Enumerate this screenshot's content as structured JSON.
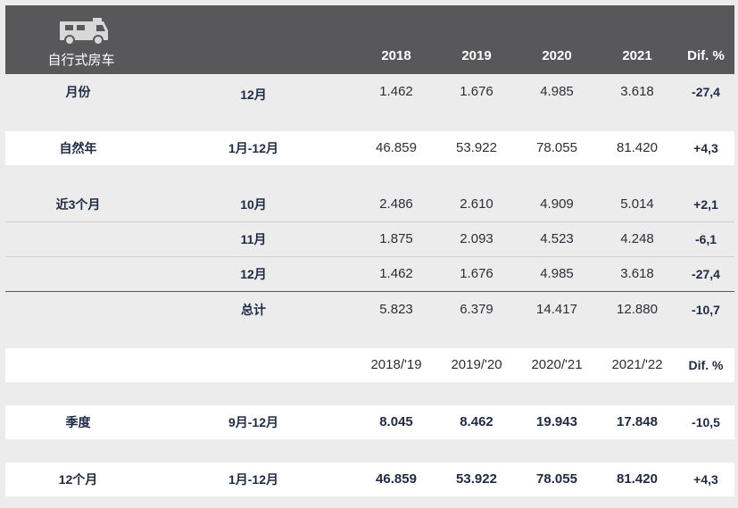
{
  "header": {
    "category": "自行式房车",
    "icon": "camper-van-icon",
    "years": [
      "2018",
      "2019",
      "2020",
      "2021"
    ],
    "diff_label": "Dif. %"
  },
  "rows": {
    "month": {
      "label": "月份",
      "period": "12月",
      "values": [
        "1.462",
        "1.676",
        "4.985",
        "3.618"
      ],
      "diff": "-27,4"
    },
    "year": {
      "label": "自然年",
      "period": "1月-12月",
      "values": [
        "46.859",
        "53.922",
        "78.055",
        "81.420"
      ],
      "diff": "+4,3"
    },
    "last3": {
      "label": "近3个月",
      "items": [
        {
          "period": "10月",
          "values": [
            "2.486",
            "2.610",
            "4.909",
            "5.014"
          ],
          "diff": "+2,1"
        },
        {
          "period": "11月",
          "values": [
            "1.875",
            "2.093",
            "4.523",
            "4.248"
          ],
          "diff": "-6,1"
        },
        {
          "period": "12月",
          "values": [
            "1.462",
            "1.676",
            "4.985",
            "3.618"
          ],
          "diff": "-27,4"
        }
      ]
    },
    "total": {
      "period": "总计",
      "values": [
        "5.823",
        "6.379",
        "14.417",
        "12.880"
      ],
      "diff": "-10,7"
    }
  },
  "season_header": {
    "seasons": [
      "2018/'19",
      "2019/'20",
      "2020/'21",
      "2021/'22"
    ],
    "diff_label": "Dif. %"
  },
  "season_rows": {
    "quarter": {
      "label": "季度",
      "period": "9月-12月",
      "values": [
        "8.045",
        "8.462",
        "19.943",
        "17.848"
      ],
      "diff": "-10,5"
    },
    "twelve": {
      "label": "12个月",
      "period": "1月-12月",
      "values": [
        "46.859",
        "53.922",
        "78.055",
        "81.420"
      ],
      "diff": "+4,3"
    }
  }
}
